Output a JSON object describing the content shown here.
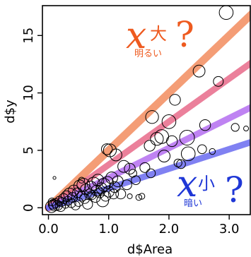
{
  "chart_data": {
    "type": "scatter",
    "title": "",
    "xlabel": "d$Area",
    "ylabel": "d$y",
    "xlim": [
      -0.1,
      3.35
    ],
    "ylim": [
      -0.6,
      17.6
    ],
    "xticks": [
      "0.0",
      "1.0",
      "2.0",
      "3.0"
    ],
    "yticks": [
      "0",
      "5",
      "10",
      "15"
    ],
    "points": [
      {
        "x": 0.05,
        "y": 0.1,
        "s": 1.2
      },
      {
        "x": 0.08,
        "y": 0.3,
        "s": 1.0
      },
      {
        "x": 0.1,
        "y": 0.2,
        "s": 1.1
      },
      {
        "x": 0.12,
        "y": 0.4,
        "s": 0.9
      },
      {
        "x": 0.15,
        "y": 0.2,
        "s": 1.0
      },
      {
        "x": 0.06,
        "y": 0.5,
        "s": 0.8
      },
      {
        "x": 0.18,
        "y": 0.6,
        "s": 0.9
      },
      {
        "x": 0.2,
        "y": 0.1,
        "s": 1.0
      },
      {
        "x": 0.22,
        "y": 0.5,
        "s": 0.9
      },
      {
        "x": 0.25,
        "y": 0.8,
        "s": 1.0
      },
      {
        "x": 0.28,
        "y": 0.3,
        "s": 0.8
      },
      {
        "x": 0.3,
        "y": 1.0,
        "s": 1.1
      },
      {
        "x": 0.32,
        "y": 0.6,
        "s": 0.9
      },
      {
        "x": 0.35,
        "y": 1.2,
        "s": 1.2
      },
      {
        "x": 0.38,
        "y": 0.4,
        "s": 0.9
      },
      {
        "x": 0.4,
        "y": 0.9,
        "s": 1.0
      },
      {
        "x": 0.42,
        "y": 1.5,
        "s": 1.1
      },
      {
        "x": 0.45,
        "y": 0.2,
        "s": 0.9
      },
      {
        "x": 0.48,
        "y": 1.3,
        "s": 1.0
      },
      {
        "x": 0.5,
        "y": 0.5,
        "s": 0.9
      },
      {
        "x": 0.52,
        "y": 1.9,
        "s": 1.2
      },
      {
        "x": 0.55,
        "y": 1.0,
        "s": 1.0
      },
      {
        "x": 0.58,
        "y": 2.0,
        "s": 1.3
      },
      {
        "x": 0.6,
        "y": 0.8,
        "s": 1.0
      },
      {
        "x": 0.62,
        "y": 1.6,
        "s": 1.1
      },
      {
        "x": 0.65,
        "y": 0.3,
        "s": 1.0
      },
      {
        "x": 0.68,
        "y": 1.2,
        "s": 1.0
      },
      {
        "x": 0.7,
        "y": 1.8,
        "s": 1.2
      },
      {
        "x": 0.72,
        "y": 1.1,
        "s": 0.9
      },
      {
        "x": 0.75,
        "y": 2.1,
        "s": 1.3
      },
      {
        "x": 0.78,
        "y": 0.9,
        "s": 1.0
      },
      {
        "x": 0.8,
        "y": 1.5,
        "s": 1.1
      },
      {
        "x": 0.82,
        "y": 2.4,
        "s": 1.2
      },
      {
        "x": 0.85,
        "y": 1.3,
        "s": 1.0
      },
      {
        "x": 0.88,
        "y": 1.7,
        "s": 1.1
      },
      {
        "x": 0.9,
        "y": 0.6,
        "s": 1.2
      },
      {
        "x": 0.92,
        "y": 2.0,
        "s": 1.3
      },
      {
        "x": 0.95,
        "y": 1.0,
        "s": 1.0
      },
      {
        "x": 0.98,
        "y": 2.2,
        "s": 1.2
      },
      {
        "x": 1.0,
        "y": 1.4,
        "s": 1.1
      },
      {
        "x": 1.02,
        "y": 5.0,
        "s": 1.3
      },
      {
        "x": 0.97,
        "y": 5.1,
        "s": 1.1
      },
      {
        "x": 1.05,
        "y": 2.6,
        "s": 1.2
      },
      {
        "x": 1.08,
        "y": 1.2,
        "s": 1.0
      },
      {
        "x": 1.1,
        "y": 1.8,
        "s": 1.1
      },
      {
        "x": 1.12,
        "y": 4.6,
        "s": 1.2
      },
      {
        "x": 1.15,
        "y": 2.3,
        "s": 1.1
      },
      {
        "x": 1.2,
        "y": 1.2,
        "s": 1.0
      },
      {
        "x": 1.25,
        "y": 3.6,
        "s": 1.2
      },
      {
        "x": 1.3,
        "y": 2.0,
        "s": 1.0
      },
      {
        "x": 1.35,
        "y": 3.4,
        "s": 1.1
      },
      {
        "x": 1.4,
        "y": 3.0,
        "s": 0.8
      },
      {
        "x": 1.45,
        "y": 2.4,
        "s": 0.9
      },
      {
        "x": 1.5,
        "y": 0.9,
        "s": 0.6
      },
      {
        "x": 1.55,
        "y": 1.0,
        "s": 0.6
      },
      {
        "x": 1.6,
        "y": 3.5,
        "s": 1.0
      },
      {
        "x": 1.68,
        "y": 5.4,
        "s": 1.1
      },
      {
        "x": 1.7,
        "y": 3.0,
        "s": 0.9
      },
      {
        "x": 1.72,
        "y": 7.9,
        "s": 1.3
      },
      {
        "x": 1.8,
        "y": 6.0,
        "s": 1.3
      },
      {
        "x": 1.88,
        "y": 6.2,
        "s": 1.4
      },
      {
        "x": 1.92,
        "y": 4.5,
        "s": 1.2
      },
      {
        "x": 2.0,
        "y": 7.5,
        "s": 1.4
      },
      {
        "x": 2.05,
        "y": 5.8,
        "s": 1.1
      },
      {
        "x": 2.1,
        "y": 9.4,
        "s": 1.1
      },
      {
        "x": 2.15,
        "y": 3.9,
        "s": 0.8
      },
      {
        "x": 2.2,
        "y": 3.8,
        "s": 0.9
      },
      {
        "x": 2.3,
        "y": 6.1,
        "s": 1.5
      },
      {
        "x": 2.32,
        "y": 4.7,
        "s": 1.4
      },
      {
        "x": 2.5,
        "y": 11.9,
        "s": 1.2
      },
      {
        "x": 2.55,
        "y": 5.1,
        "s": 0.9
      },
      {
        "x": 2.6,
        "y": 7.2,
        "s": 1.1
      },
      {
        "x": 2.72,
        "y": 4.9,
        "s": 0.6
      },
      {
        "x": 2.82,
        "y": 11.0,
        "s": 1.0
      },
      {
        "x": 2.95,
        "y": 17.0,
        "s": 1.4
      },
      {
        "x": 3.1,
        "y": 7.0,
        "s": 0.8
      },
      {
        "x": 3.28,
        "y": 6.9,
        "s": 0.5
      },
      {
        "x": 0.1,
        "y": 2.6,
        "s": 0.3
      },
      {
        "x": 0.55,
        "y": 2.4,
        "s": 0.6
      },
      {
        "x": 1.35,
        "y": 1.0,
        "s": 0.5
      }
    ],
    "lines": [
      {
        "slope": 5.0,
        "color": "#f28c5e",
        "width": 11
      },
      {
        "slope": 3.75,
        "color": "#e86a8a",
        "width": 9
      },
      {
        "slope": 2.6,
        "color": "#b46df0",
        "width": 9
      },
      {
        "slope": 1.7,
        "color": "#6a6bf0",
        "width": 9
      }
    ],
    "annotations": [
      {
        "id": "big",
        "symbol": "x",
        "kanji": "大",
        "mark": "?",
        "note": "明るい",
        "color": "#ee5a1f"
      },
      {
        "id": "small",
        "symbol": "x",
        "kanji": "小",
        "mark": "?",
        "note": "暗い",
        "color": "#1f37d6"
      }
    ]
  }
}
